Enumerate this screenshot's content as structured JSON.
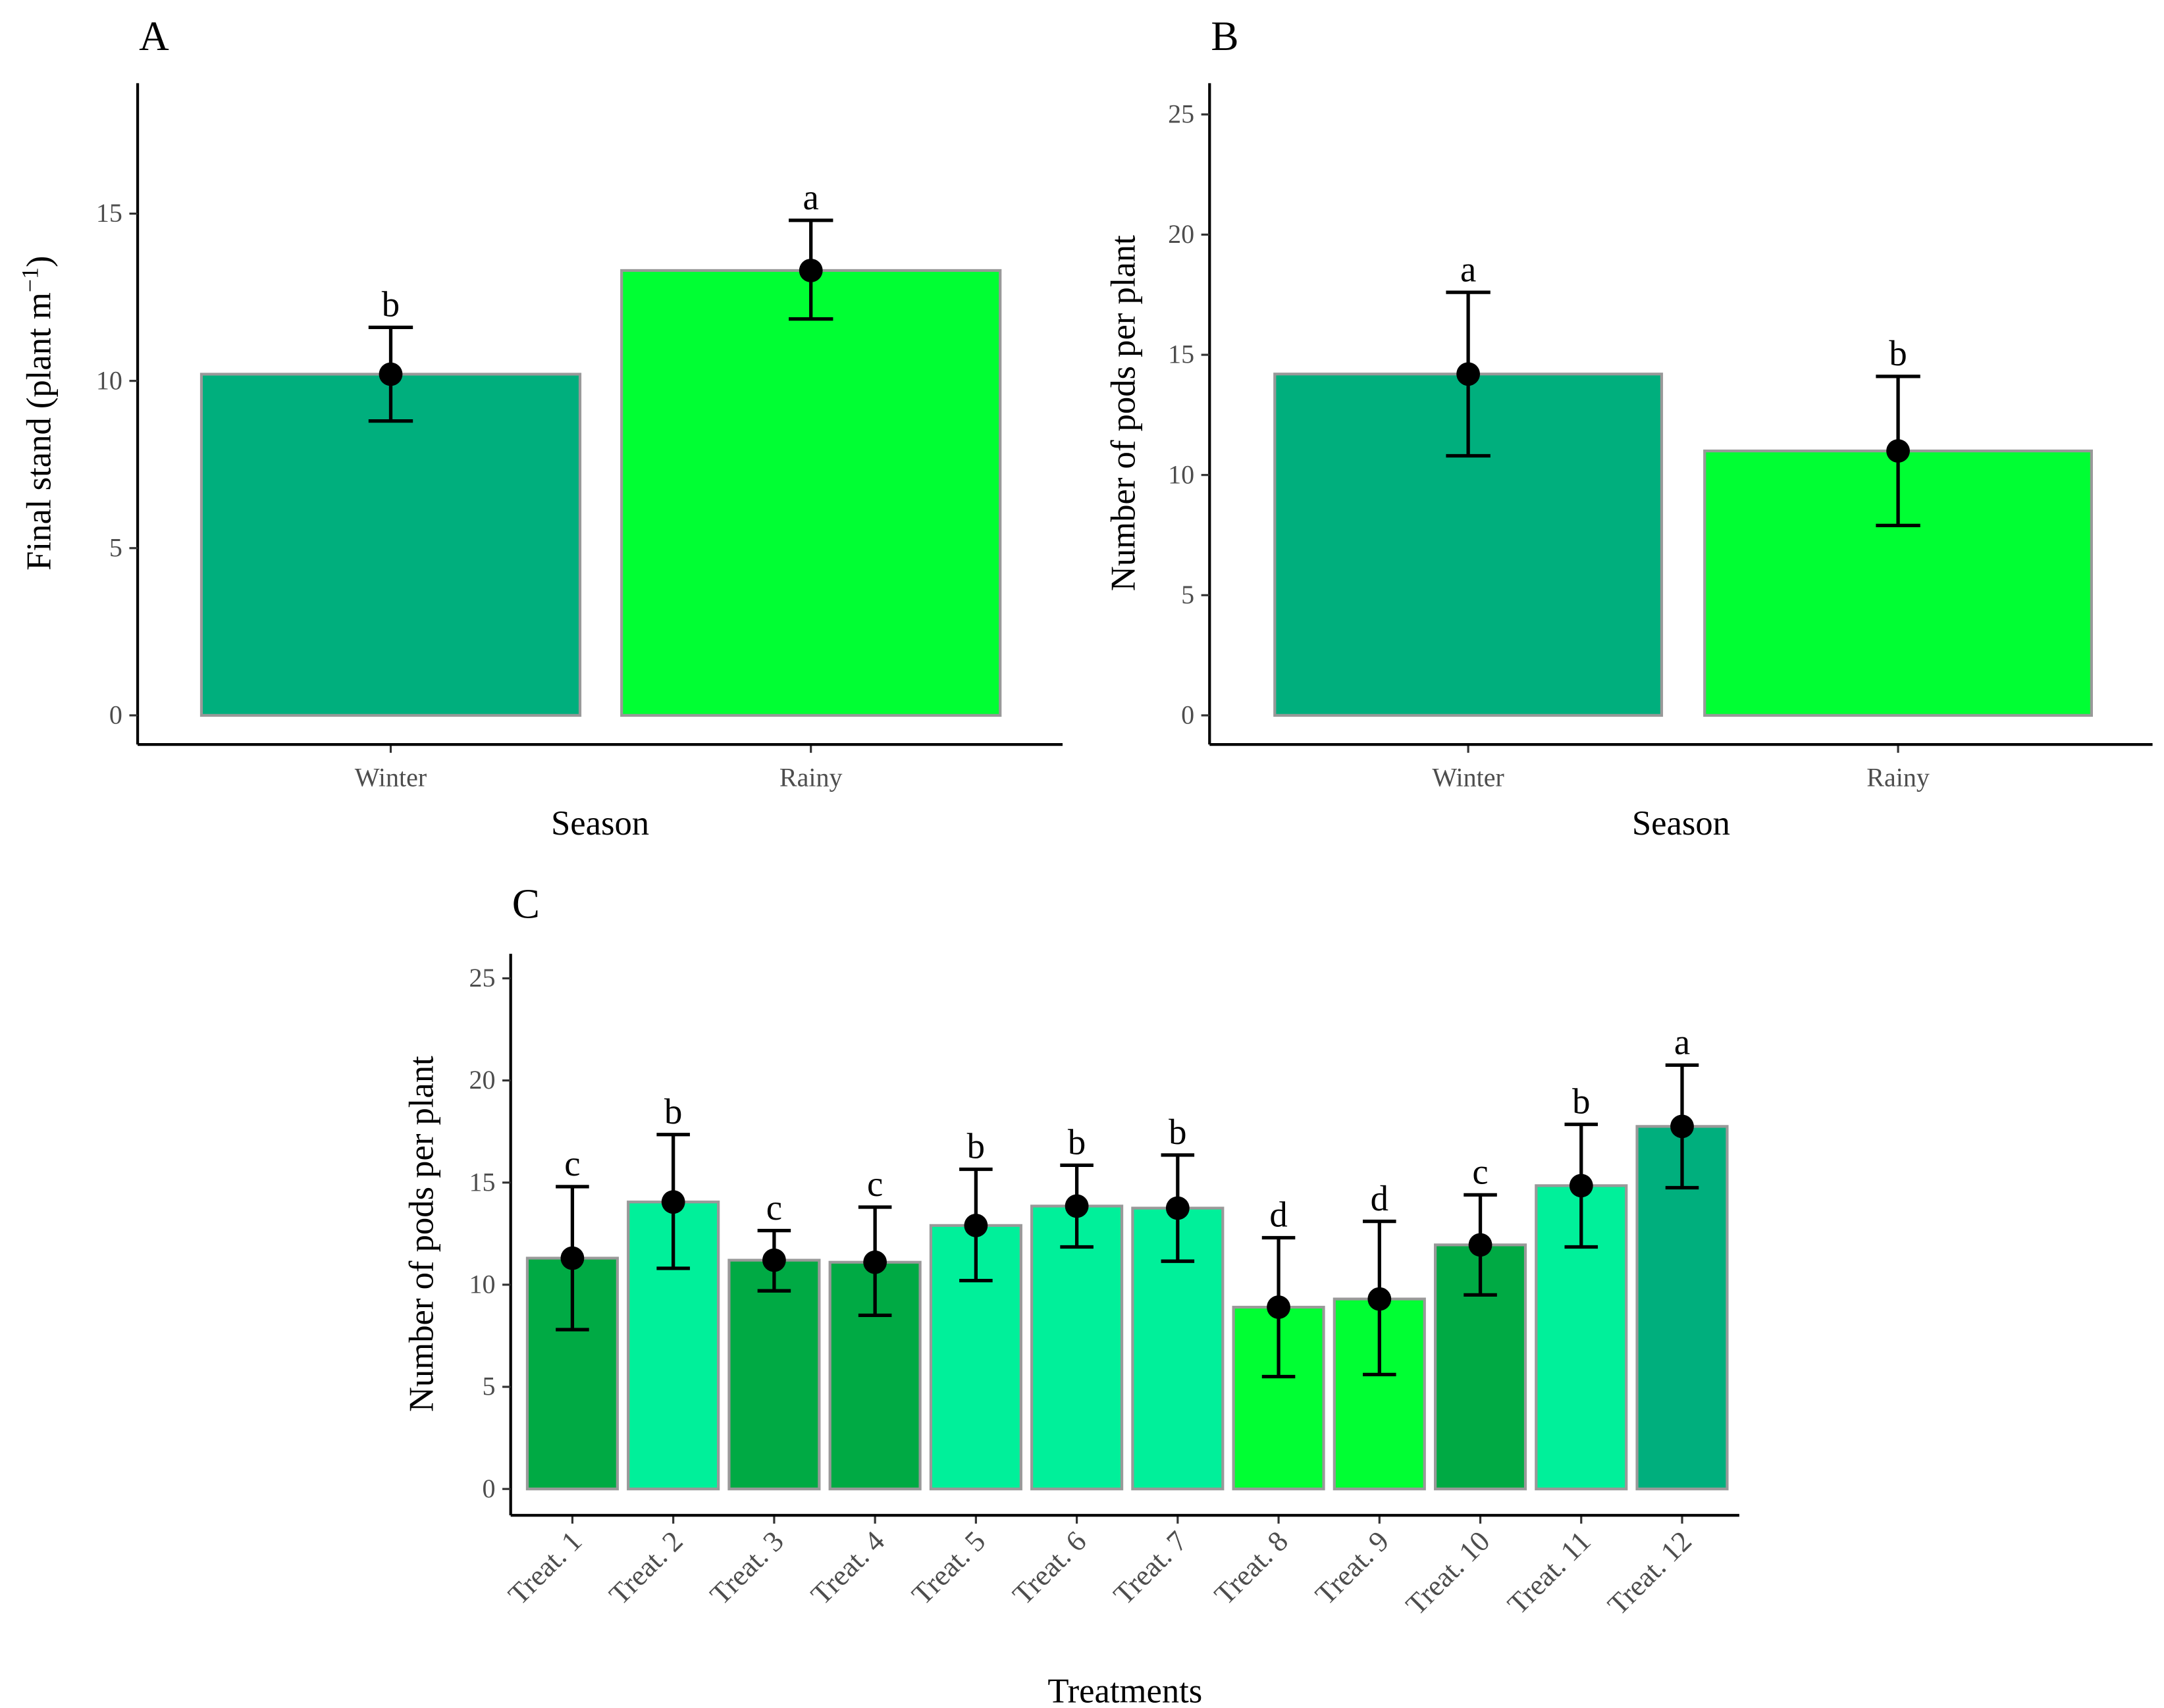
{
  "chart_data": [
    {
      "panel": "A",
      "type": "bar",
      "xlabel": "Season",
      "ylabel": "Final stand (plant m",
      "ylabel_sup": "−1",
      "ylabel_end": ")",
      "ylim": [
        0,
        18.9
      ],
      "yticks": [
        0,
        5,
        10,
        15
      ],
      "categories": [
        "Winter",
        "Rainy"
      ],
      "values": [
        10.2,
        13.3
      ],
      "err_low": [
        8.8,
        11.85
      ],
      "err_high": [
        11.6,
        14.8
      ],
      "letters": [
        "b",
        "a"
      ],
      "colors": [
        "#00AF7D",
        "#00FF33"
      ]
    },
    {
      "panel": "B",
      "type": "bar",
      "xlabel": "Season",
      "ylabel": "Number of pods per plant",
      "ylim": [
        0,
        26.3
      ],
      "yticks": [
        0,
        5,
        10,
        15,
        20,
        25
      ],
      "categories": [
        "Winter",
        "Rainy"
      ],
      "values": [
        14.2,
        11.0
      ],
      "err_low": [
        10.8,
        7.9
      ],
      "err_high": [
        17.6,
        14.1
      ],
      "letters": [
        "a",
        "b"
      ],
      "colors": [
        "#00AF7D",
        "#00FF33"
      ]
    },
    {
      "panel": "C",
      "type": "bar",
      "xlabel": "Treatments",
      "ylabel": "Number of pods per plant",
      "ylim": [
        0,
        26.2
      ],
      "yticks": [
        0,
        5,
        10,
        15,
        20,
        25
      ],
      "categories": [
        "Treat. 1",
        "Treat. 2",
        "Treat. 3",
        "Treat. 4",
        "Treat. 5",
        "Treat. 6",
        "Treat. 7",
        "Treat. 8",
        "Treat. 9",
        "Treat. 10",
        "Treat. 11",
        "Treat. 12"
      ],
      "values": [
        11.3,
        14.05,
        11.2,
        11.1,
        12.9,
        13.85,
        13.75,
        8.9,
        9.3,
        11.95,
        14.85,
        17.75
      ],
      "err_low": [
        7.8,
        10.8,
        9.7,
        8.5,
        10.2,
        11.85,
        11.15,
        5.5,
        5.6,
        9.5,
        11.85,
        14.75
      ],
      "err_high": [
        14.8,
        17.35,
        12.65,
        13.8,
        15.65,
        15.85,
        16.35,
        12.3,
        13.1,
        14.4,
        17.85,
        20.75
      ],
      "letters": [
        "c",
        "b",
        "c",
        "c",
        "b",
        "b",
        "b",
        "d",
        "d",
        "c",
        "b",
        "a"
      ],
      "colors": [
        "#00AA44",
        "#00F09A",
        "#00AA44",
        "#00AA44",
        "#00F09A",
        "#00F09A",
        "#00F09A",
        "#00FF33",
        "#00FF33",
        "#00AA44",
        "#00F09A",
        "#00AF7D"
      ]
    }
  ]
}
